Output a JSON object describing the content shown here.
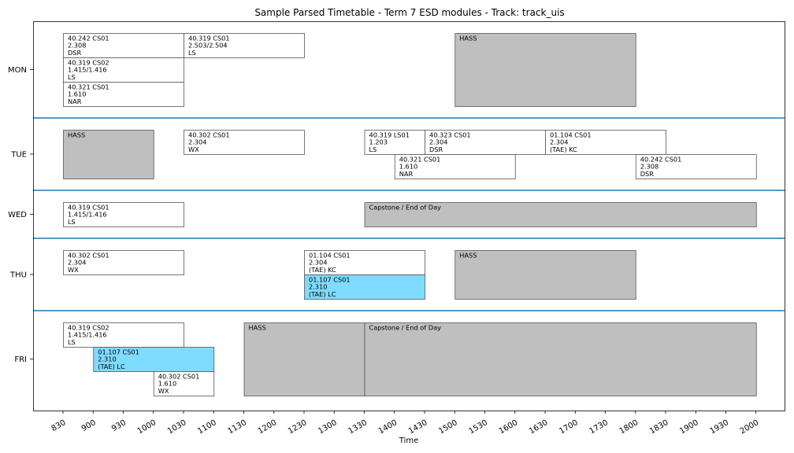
{
  "chart_data": {
    "type": "table",
    "title": "Sample Parsed Timetable - Term 7 ESD modules - Track: track_uis",
    "xlabel": "Time",
    "ylabel": "",
    "x_ticks": [
      "830",
      "900",
      "930",
      "1000",
      "1030",
      "1100",
      "1130",
      "1200",
      "1230",
      "1300",
      "1330",
      "1400",
      "1430",
      "1500",
      "1530",
      "1600",
      "1630",
      "1700",
      "1730",
      "1800",
      "1830",
      "1900",
      "1930",
      "2000"
    ],
    "days": [
      {
        "name": "MON",
        "lanes": 3
      },
      {
        "name": "TUE",
        "lanes": 2
      },
      {
        "name": "WED",
        "lanes": 1
      },
      {
        "name": "THU",
        "lanes": 2
      },
      {
        "name": "FRI",
        "lanes": 3
      }
    ],
    "colors": {
      "class": "#ffffff",
      "gray": "#bfbfbf",
      "blue": "#7fdbff",
      "separator": "#1f77b4",
      "border": "#555555"
    },
    "events": [
      {
        "day": "MON",
        "lane": 0,
        "span": 1,
        "start": "830",
        "end": "1030",
        "lines": [
          "40.242 CS01",
          "2.308",
          "DSR"
        ],
        "kind": "class"
      },
      {
        "day": "MON",
        "lane": 1,
        "span": 1,
        "start": "830",
        "end": "1030",
        "lines": [
          "40.319 CS02",
          "1.415/1.416",
          "LS"
        ],
        "kind": "class"
      },
      {
        "day": "MON",
        "lane": 2,
        "span": 1,
        "start": "830",
        "end": "1030",
        "lines": [
          "40.321 CS01",
          "1.610",
          "NAR"
        ],
        "kind": "class"
      },
      {
        "day": "MON",
        "lane": 0,
        "span": 1,
        "start": "1030",
        "end": "1230",
        "lines": [
          "40.319 CS01",
          "2.503/2.504",
          "LS"
        ],
        "kind": "class"
      },
      {
        "day": "MON",
        "lane": 0,
        "span": 3,
        "start": "1500",
        "end": "1800",
        "lines": [
          "HASS"
        ],
        "kind": "gray"
      },
      {
        "day": "TUE",
        "lane": 0,
        "span": 2,
        "start": "830",
        "end": "1000",
        "lines": [
          "HASS"
        ],
        "kind": "gray"
      },
      {
        "day": "TUE",
        "lane": 0,
        "span": 1,
        "start": "1030",
        "end": "1230",
        "lines": [
          "40.302 CS01",
          "2.304",
          "WX"
        ],
        "kind": "class"
      },
      {
        "day": "TUE",
        "lane": 0,
        "span": 1,
        "start": "1330",
        "end": "1430",
        "lines": [
          "40.319 LS01",
          "1.203",
          "LS"
        ],
        "kind": "class"
      },
      {
        "day": "TUE",
        "lane": 0,
        "span": 1,
        "start": "1430",
        "end": "1630",
        "lines": [
          "40.323 CS01",
          "2.304",
          "DSR"
        ],
        "kind": "class"
      },
      {
        "day": "TUE",
        "lane": 0,
        "span": 1,
        "start": "1630",
        "end": "1830",
        "lines": [
          "01.104 CS01",
          "2.304",
          "(TAE) KC"
        ],
        "kind": "class"
      },
      {
        "day": "TUE",
        "lane": 1,
        "span": 1,
        "start": "1400",
        "end": "1600",
        "lines": [
          "40.321 CS01",
          "1.610",
          "NAR"
        ],
        "kind": "class"
      },
      {
        "day": "TUE",
        "lane": 1,
        "span": 1,
        "start": "1800",
        "end": "2000",
        "lines": [
          "40.242 CS01",
          "2.308",
          "DSR"
        ],
        "kind": "class"
      },
      {
        "day": "WED",
        "lane": 0,
        "span": 1,
        "start": "830",
        "end": "1030",
        "lines": [
          "40.319 CS01",
          "1.415/1.416",
          "LS"
        ],
        "kind": "class"
      },
      {
        "day": "WED",
        "lane": 0,
        "span": 1,
        "start": "1330",
        "end": "2000",
        "lines": [
          "Capstone / End of Day"
        ],
        "kind": "gray"
      },
      {
        "day": "THU",
        "lane": 0,
        "span": 1,
        "start": "830",
        "end": "1030",
        "lines": [
          "40.302 CS01",
          "2.304",
          "WX"
        ],
        "kind": "class"
      },
      {
        "day": "THU",
        "lane": 0,
        "span": 1,
        "start": "1230",
        "end": "1430",
        "lines": [
          "01.104 CS01",
          "2.304",
          "(TAE) KC"
        ],
        "kind": "class"
      },
      {
        "day": "THU",
        "lane": 1,
        "span": 1,
        "start": "1230",
        "end": "1430",
        "lines": [
          "01.107 CS01",
          "2.310",
          "(TAE) LC"
        ],
        "kind": "blue"
      },
      {
        "day": "THU",
        "lane": 0,
        "span": 2,
        "start": "1500",
        "end": "1800",
        "lines": [
          "HASS"
        ],
        "kind": "gray"
      },
      {
        "day": "FRI",
        "lane": 0,
        "span": 1,
        "start": "830",
        "end": "1030",
        "lines": [
          "40.319 CS02",
          "1.415/1.416",
          "LS"
        ],
        "kind": "class"
      },
      {
        "day": "FRI",
        "lane": 1,
        "span": 1,
        "start": "900",
        "end": "1100",
        "lines": [
          "01.107 CS01",
          "2.310",
          "(TAE) LC"
        ],
        "kind": "blue"
      },
      {
        "day": "FRI",
        "lane": 2,
        "span": 1,
        "start": "1000",
        "end": "1100",
        "lines": [
          "40.302 CS01",
          "1.610",
          "WX"
        ],
        "kind": "class"
      },
      {
        "day": "FRI",
        "lane": 0,
        "span": 3,
        "start": "1130",
        "end": "1330",
        "lines": [
          "HASS"
        ],
        "kind": "gray"
      },
      {
        "day": "FRI",
        "lane": 0,
        "span": 3,
        "start": "1330",
        "end": "2000",
        "lines": [
          "Capstone / End of Day"
        ],
        "kind": "gray"
      }
    ]
  }
}
